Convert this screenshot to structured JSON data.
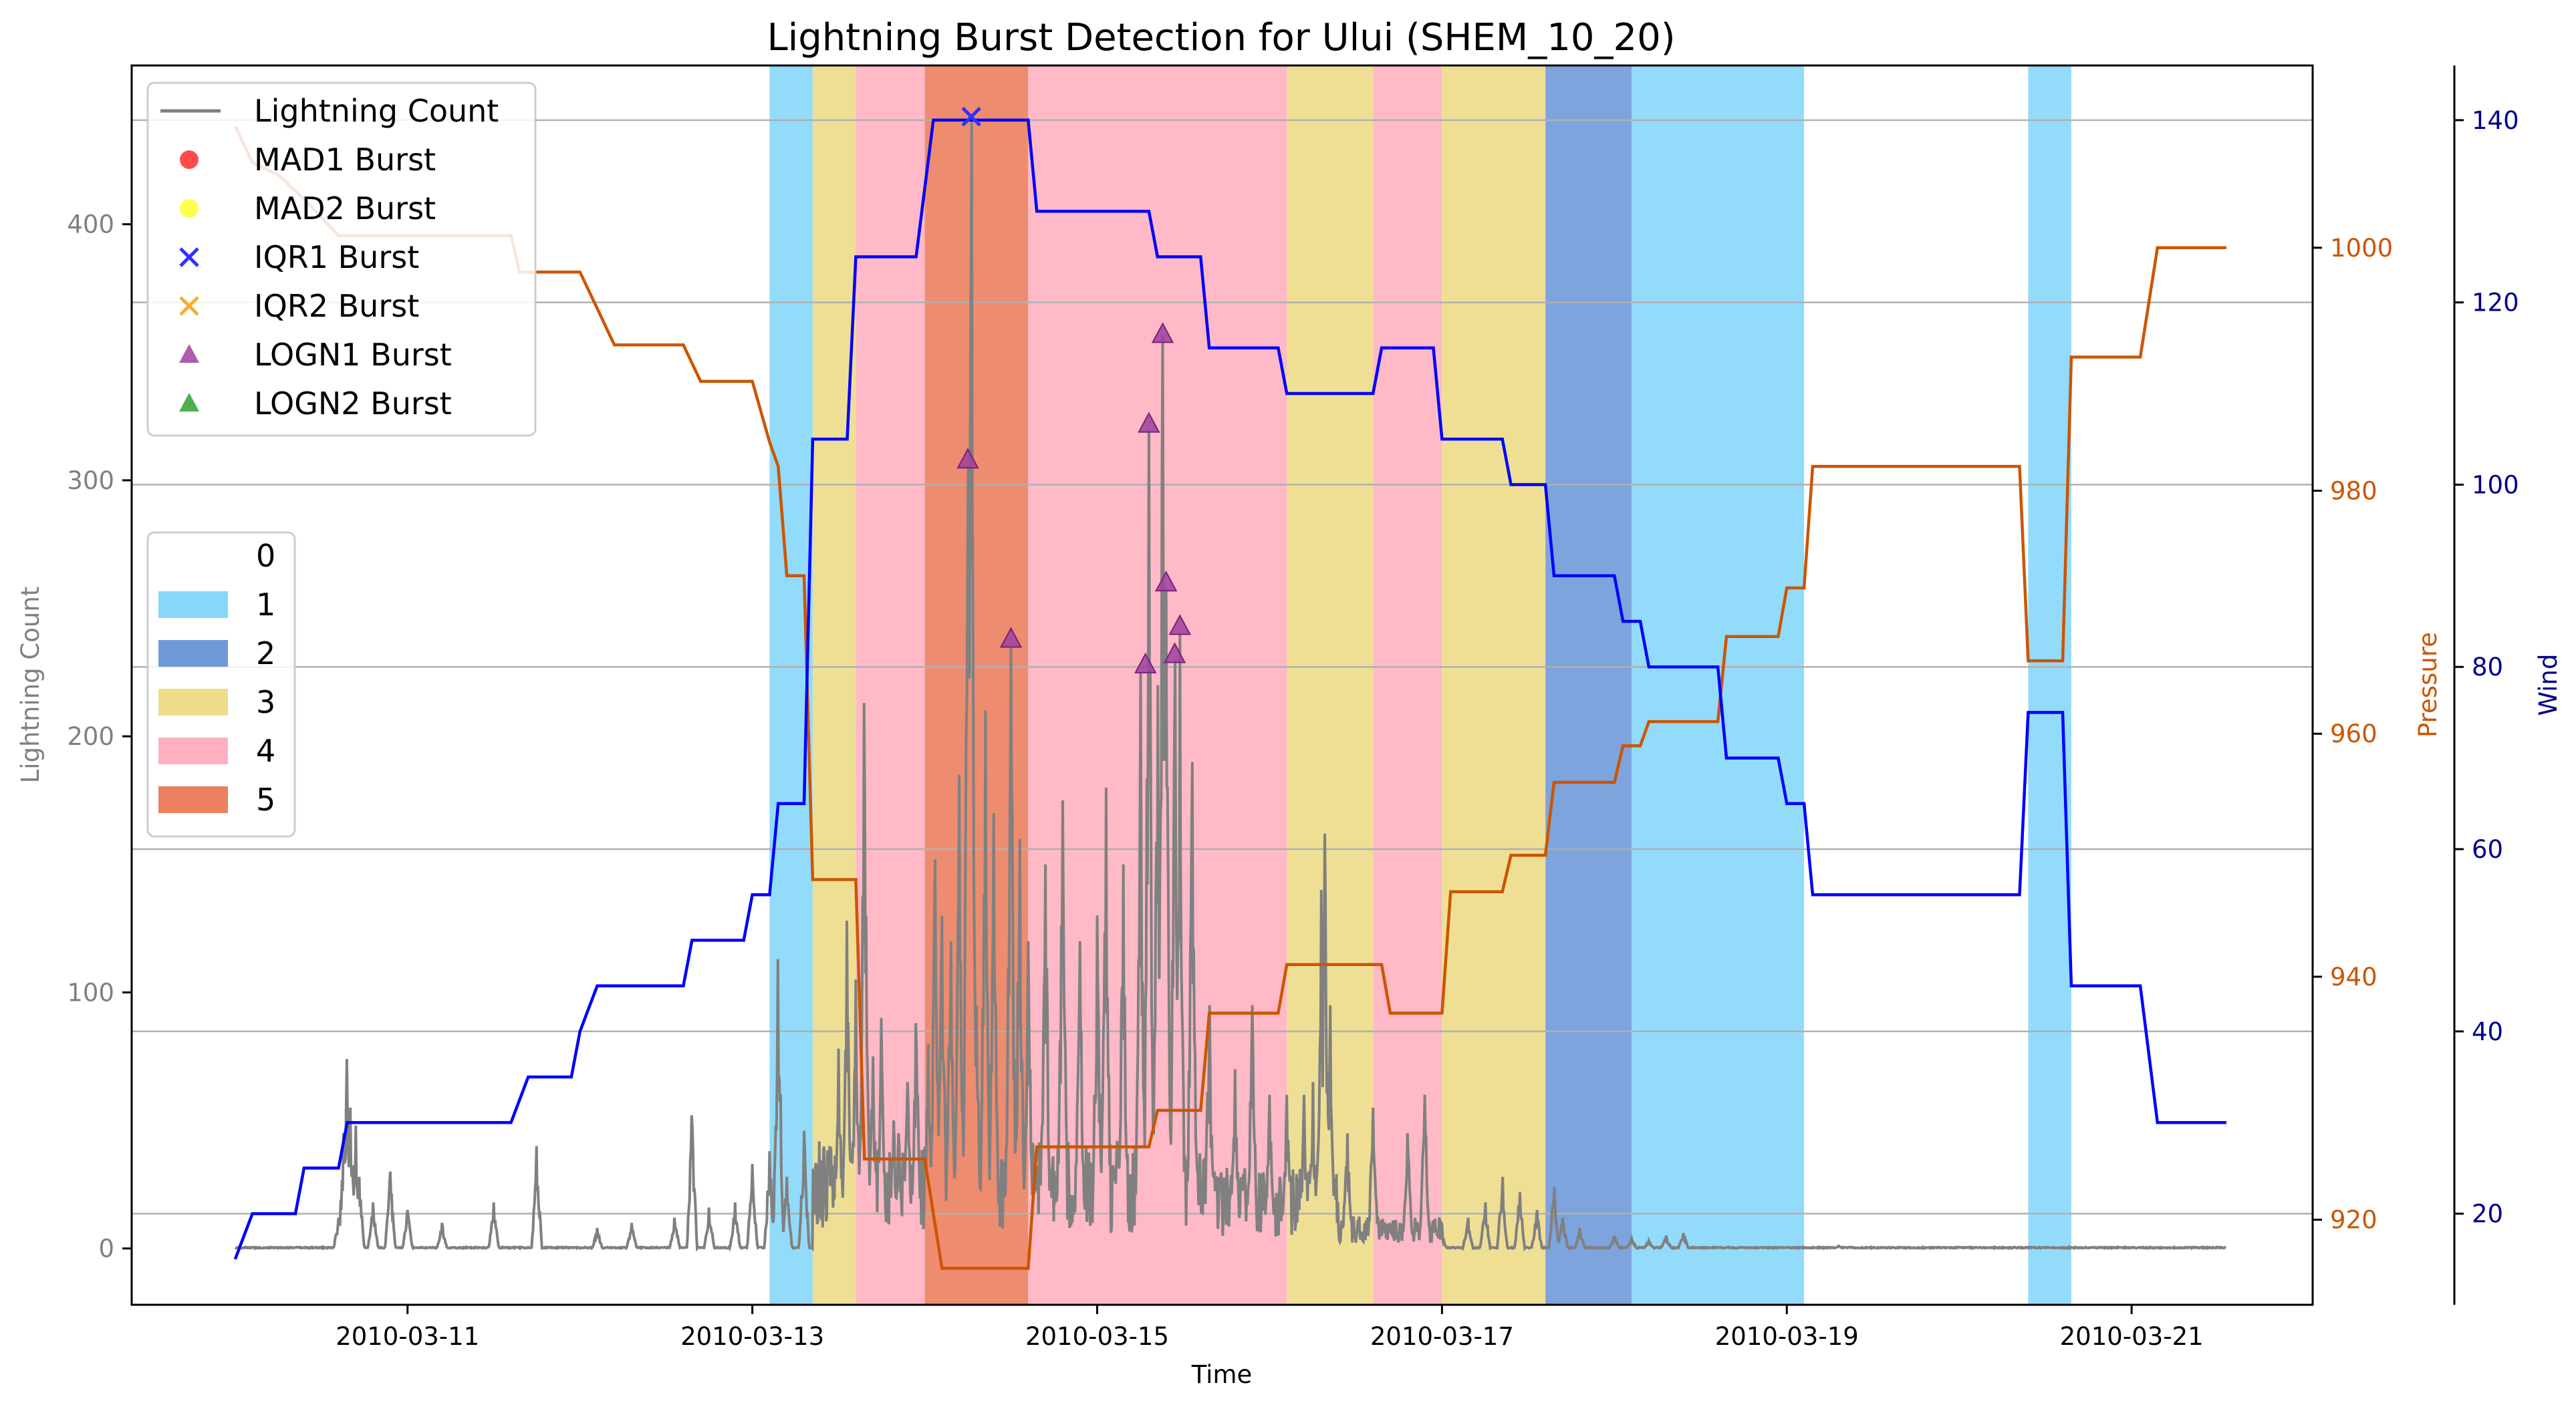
{
  "chart_data": {
    "type": "line",
    "title": "Lightning Burst Detection for Ului (SHEM_10_20)",
    "xlabel": "Time",
    "x_ticks": [
      "2010-03-11",
      "2010-03-13",
      "2010-03-15",
      "2010-03-17",
      "2010-03-19",
      "2010-03-21"
    ],
    "x_range_days": [
      -0.6,
      12.05
    ],
    "axes": {
      "left": {
        "label": "Lightning Count",
        "ylim": [
          -22,
          462
        ],
        "ticks": [
          0,
          100,
          200,
          300,
          400
        ],
        "color": "#808080"
      },
      "pressure": {
        "label": "Pressure",
        "ylim": [
          913,
          1015
        ],
        "ticks": [
          920,
          940,
          960,
          980,
          1000
        ],
        "color": "#cc5500"
      },
      "wind": {
        "label": "Wind",
        "ylim": [
          10,
          146
        ],
        "ticks": [
          20,
          40,
          60,
          80,
          100,
          120,
          140
        ],
        "color": "#00008b"
      }
    },
    "grid": "horizontal on wind axis",
    "intensity_bands": [
      {
        "start": 3.1,
        "end": 3.35,
        "category": "1"
      },
      {
        "start": 3.35,
        "end": 3.6,
        "category": "3"
      },
      {
        "start": 3.6,
        "end": 4.0,
        "category": "4"
      },
      {
        "start": 4.0,
        "end": 4.6,
        "category": "5"
      },
      {
        "start": 4.6,
        "end": 6.1,
        "category": "4"
      },
      {
        "start": 6.1,
        "end": 6.6,
        "category": "3"
      },
      {
        "start": 6.6,
        "end": 7.0,
        "category": "4"
      },
      {
        "start": 7.0,
        "end": 7.6,
        "category": "3"
      },
      {
        "start": 7.6,
        "end": 8.1,
        "category": "2"
      },
      {
        "start": 8.1,
        "end": 9.1,
        "category": "1"
      },
      {
        "start": 10.4,
        "end": 10.65,
        "category": "1"
      }
    ],
    "pressure_series": {
      "name": "Pressure",
      "color": "#cc5500",
      "steps": [
        [
          0,
          1010
        ],
        [
          0.1,
          1007
        ],
        [
          0.25,
          1006
        ],
        [
          0.4,
          1004
        ],
        [
          0.6,
          1001
        ],
        [
          1.6,
          1001
        ],
        [
          1.65,
          998
        ],
        [
          2.0,
          998
        ],
        [
          2.1,
          995
        ],
        [
          2.2,
          992
        ],
        [
          2.6,
          992
        ],
        [
          2.7,
          989
        ],
        [
          3.0,
          989
        ],
        [
          3.1,
          984
        ],
        [
          3.15,
          982
        ],
        [
          3.2,
          973
        ],
        [
          3.3,
          973
        ],
        [
          3.35,
          948
        ],
        [
          3.6,
          948
        ],
        [
          3.65,
          925
        ],
        [
          4.0,
          925
        ],
        [
          4.1,
          916
        ],
        [
          4.6,
          916
        ],
        [
          4.65,
          926
        ],
        [
          5.3,
          926
        ],
        [
          5.35,
          929
        ],
        [
          5.6,
          929
        ],
        [
          5.65,
          937
        ],
        [
          6.05,
          937
        ],
        [
          6.1,
          941
        ],
        [
          6.65,
          941
        ],
        [
          6.7,
          937
        ],
        [
          7.0,
          937
        ],
        [
          7.05,
          947
        ],
        [
          7.35,
          947
        ],
        [
          7.4,
          950
        ],
        [
          7.6,
          950
        ],
        [
          7.65,
          956
        ],
        [
          8.0,
          956
        ],
        [
          8.05,
          959
        ],
        [
          8.15,
          959
        ],
        [
          8.2,
          961
        ],
        [
          8.6,
          961
        ],
        [
          8.65,
          968
        ],
        [
          8.95,
          968
        ],
        [
          9.0,
          972
        ],
        [
          9.1,
          972
        ],
        [
          9.15,
          982
        ],
        [
          10.35,
          982
        ],
        [
          10.4,
          966
        ],
        [
          10.6,
          966
        ],
        [
          10.65,
          991
        ],
        [
          11.05,
          991
        ],
        [
          11.15,
          1000
        ],
        [
          11.55,
          1000
        ]
      ]
    },
    "wind_series": {
      "name": "Wind",
      "color": "#0000ff",
      "steps": [
        [
          0,
          15
        ],
        [
          0.1,
          20
        ],
        [
          0.35,
          20
        ],
        [
          0.4,
          25
        ],
        [
          0.6,
          25
        ],
        [
          0.65,
          30
        ],
        [
          1.6,
          30
        ],
        [
          1.7,
          35
        ],
        [
          1.95,
          35
        ],
        [
          2.0,
          40
        ],
        [
          2.1,
          45
        ],
        [
          2.6,
          45
        ],
        [
          2.65,
          50
        ],
        [
          2.95,
          50
        ],
        [
          3.0,
          55
        ],
        [
          3.1,
          55
        ],
        [
          3.15,
          65
        ],
        [
          3.3,
          65
        ],
        [
          3.35,
          105
        ],
        [
          3.55,
          105
        ],
        [
          3.6,
          125
        ],
        [
          3.95,
          125
        ],
        [
          4.05,
          140
        ],
        [
          4.6,
          140
        ],
        [
          4.65,
          130
        ],
        [
          5.3,
          130
        ],
        [
          5.35,
          125
        ],
        [
          5.6,
          125
        ],
        [
          5.65,
          115
        ],
        [
          6.05,
          115
        ],
        [
          6.1,
          110
        ],
        [
          6.6,
          110
        ],
        [
          6.65,
          115
        ],
        [
          6.95,
          115
        ],
        [
          7.0,
          105
        ],
        [
          7.35,
          105
        ],
        [
          7.4,
          100
        ],
        [
          7.6,
          100
        ],
        [
          7.65,
          90
        ],
        [
          8.0,
          90
        ],
        [
          8.05,
          85
        ],
        [
          8.15,
          85
        ],
        [
          8.2,
          80
        ],
        [
          8.6,
          80
        ],
        [
          8.65,
          70
        ],
        [
          8.95,
          70
        ],
        [
          9.0,
          65
        ],
        [
          9.1,
          65
        ],
        [
          9.15,
          55
        ],
        [
          10.35,
          55
        ],
        [
          10.4,
          75
        ],
        [
          10.6,
          75
        ],
        [
          10.65,
          45
        ],
        [
          11.05,
          45
        ],
        [
          11.15,
          30
        ],
        [
          11.55,
          30
        ]
      ]
    },
    "lightning_series": {
      "name": "Lightning Count",
      "color": "#808080",
      "range": [
        0,
        11.55
      ],
      "peaks": [
        [
          0.6,
          12
        ],
        [
          0.63,
          45
        ],
        [
          0.65,
          74
        ],
        [
          0.67,
          55
        ],
        [
          0.7,
          48
        ],
        [
          0.72,
          28
        ],
        [
          0.8,
          18
        ],
        [
          0.9,
          30
        ],
        [
          1.0,
          15
        ],
        [
          1.2,
          10
        ],
        [
          1.5,
          18
        ],
        [
          1.75,
          40
        ],
        [
          2.1,
          8
        ],
        [
          2.3,
          10
        ],
        [
          2.55,
          12
        ],
        [
          2.65,
          52
        ],
        [
          2.75,
          16
        ],
        [
          2.9,
          18
        ],
        [
          3.0,
          33
        ],
        [
          3.1,
          38
        ],
        [
          3.15,
          113
        ],
        [
          3.2,
          28
        ],
        [
          3.3,
          46
        ],
        [
          3.45,
          40
        ],
        [
          3.5,
          78
        ],
        [
          3.55,
          128
        ],
        [
          3.6,
          105
        ],
        [
          3.65,
          213
        ],
        [
          3.7,
          75
        ],
        [
          3.75,
          90
        ],
        [
          3.82,
          50
        ],
        [
          3.85,
          45
        ],
        [
          3.9,
          65
        ],
        [
          3.95,
          88
        ],
        [
          4.02,
          80
        ],
        [
          4.06,
          152
        ],
        [
          4.1,
          130
        ],
        [
          4.15,
          120
        ],
        [
          4.2,
          185
        ],
        [
          4.25,
          305
        ],
        [
          4.27,
          442
        ],
        [
          4.3,
          95
        ],
        [
          4.35,
          210
        ],
        [
          4.4,
          170
        ],
        [
          4.5,
          235
        ],
        [
          4.55,
          160
        ],
        [
          4.6,
          120
        ],
        [
          4.7,
          150
        ],
        [
          4.8,
          175
        ],
        [
          4.9,
          120
        ],
        [
          5.0,
          130
        ],
        [
          5.05,
          180
        ],
        [
          5.15,
          150
        ],
        [
          5.25,
          225
        ],
        [
          5.3,
          320
        ],
        [
          5.35,
          220
        ],
        [
          5.38,
          357
        ],
        [
          5.4,
          258
        ],
        [
          5.45,
          230
        ],
        [
          5.48,
          240
        ],
        [
          5.55,
          190
        ],
        [
          5.65,
          95
        ],
        [
          5.8,
          70
        ],
        [
          5.9,
          95
        ],
        [
          6.0,
          60
        ],
        [
          6.1,
          60
        ],
        [
          6.2,
          60
        ],
        [
          6.25,
          65
        ],
        [
          6.3,
          140
        ],
        [
          6.32,
          162
        ],
        [
          6.35,
          95
        ],
        [
          6.45,
          45
        ],
        [
          6.6,
          55
        ],
        [
          6.8,
          45
        ],
        [
          6.9,
          60
        ],
        [
          7.0,
          5
        ],
        [
          7.15,
          12
        ],
        [
          7.25,
          18
        ],
        [
          7.35,
          28
        ],
        [
          7.45,
          22
        ],
        [
          7.55,
          15
        ],
        [
          7.65,
          24
        ],
        [
          7.7,
          12
        ],
        [
          7.8,
          8
        ],
        [
          8.0,
          5
        ],
        [
          8.1,
          4
        ],
        [
          8.2,
          3
        ],
        [
          8.3,
          5
        ],
        [
          8.4,
          6
        ],
        [
          9.3,
          1
        ]
      ],
      "dense_ranges": [
        [
          3.35,
          5.65,
          40
        ],
        [
          5.65,
          6.4,
          30
        ],
        [
          6.4,
          7.0,
          12
        ]
      ]
    },
    "burst_markers": [
      {
        "type": "IQR1 Burst",
        "marker": "x",
        "x": 4.27,
        "y": 442
      },
      {
        "type": "LOGN1 Burst",
        "marker": "triangle",
        "x": 4.25,
        "y": 308
      },
      {
        "type": "LOGN1 Burst",
        "marker": "triangle",
        "x": 4.5,
        "y": 238
      },
      {
        "type": "LOGN1 Burst",
        "marker": "triangle",
        "x": 5.28,
        "y": 228
      },
      {
        "type": "LOGN1 Burst",
        "marker": "triangle",
        "x": 5.3,
        "y": 322
      },
      {
        "type": "LOGN1 Burst",
        "marker": "triangle",
        "x": 5.38,
        "y": 357
      },
      {
        "type": "LOGN1 Burst",
        "marker": "triangle",
        "x": 5.4,
        "y": 260
      },
      {
        "type": "LOGN1 Burst",
        "marker": "triangle",
        "x": 5.45,
        "y": 232
      },
      {
        "type": "LOGN1 Burst",
        "marker": "triangle",
        "x": 5.48,
        "y": 243
      }
    ],
    "legend": {
      "placement": "top-left",
      "entries": [
        {
          "label": "Lightning Count",
          "kind": "line",
          "color": "#808080"
        },
        {
          "label": "MAD1 Burst",
          "kind": "circle",
          "color": "#ff2020"
        },
        {
          "label": "MAD2 Burst",
          "kind": "circle",
          "color": "#ffff20"
        },
        {
          "label": "IQR1 Burst",
          "kind": "x",
          "color": "#3030ff"
        },
        {
          "label": "IQR2 Burst",
          "kind": "x",
          "color": "#f5b030"
        },
        {
          "label": "LOGN1 Burst",
          "kind": "triangle",
          "color": "#a040a0"
        },
        {
          "label": "LOGN2 Burst",
          "kind": "triangle",
          "color": "#30a030"
        }
      ]
    },
    "category_legend": {
      "placement": "center-left",
      "entries": [
        {
          "label": "0",
          "color": "#ffffff"
        },
        {
          "label": "1",
          "color": "#87d7fa"
        },
        {
          "label": "2",
          "color": "#6f9ad8"
        },
        {
          "label": "3",
          "color": "#eddc8a"
        },
        {
          "label": "4",
          "color": "#ffb1c1"
        },
        {
          "label": "5",
          "color": "#ec8060"
        }
      ]
    }
  }
}
